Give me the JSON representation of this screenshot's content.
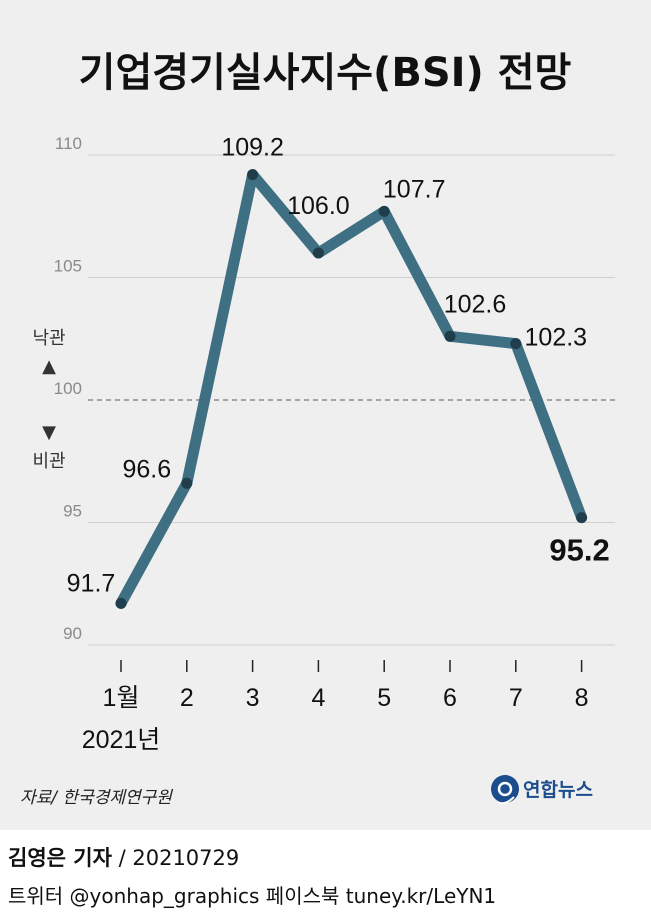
{
  "title": "기업경기실사지수(BSI) 전망",
  "chart_data": {
    "type": "line",
    "title": "기업경기실사지수(BSI) 전망",
    "categories": [
      "1월",
      "2",
      "3",
      "4",
      "5",
      "6",
      "7",
      "8"
    ],
    "x_sublabel": "2021년",
    "values": [
      91.7,
      96.6,
      109.2,
      106.0,
      107.7,
      102.6,
      102.3,
      95.2
    ],
    "value_labels": [
      "91.7",
      "96.6",
      "109.2",
      "106.0",
      "107.7",
      "102.6",
      "102.3",
      "95.2"
    ],
    "ylim": [
      90,
      110
    ],
    "yticks": [
      90,
      95,
      100,
      105,
      110
    ],
    "ytick_labels": [
      "90",
      "95",
      "100",
      "105",
      "110"
    ],
    "reference_line": 100,
    "zone_labels": {
      "above": "낙관",
      "above_arrow": "▲",
      "below_arrow": "▼",
      "below": "비관"
    },
    "grid": true,
    "line_color": "#3e6f83",
    "background_color": "#efefef"
  },
  "source": "자료/ 한국경제연구원",
  "logo": {
    "name": "연합뉴스",
    "icon": "yonhap-logo-icon",
    "color": "#1b4d8c"
  },
  "credit": {
    "reporter": "김영은 기자",
    "separator": " / ",
    "date": "20210729"
  },
  "social": "트위터 @yonhap_graphics  페이스북 tuney.kr/LeYN1"
}
